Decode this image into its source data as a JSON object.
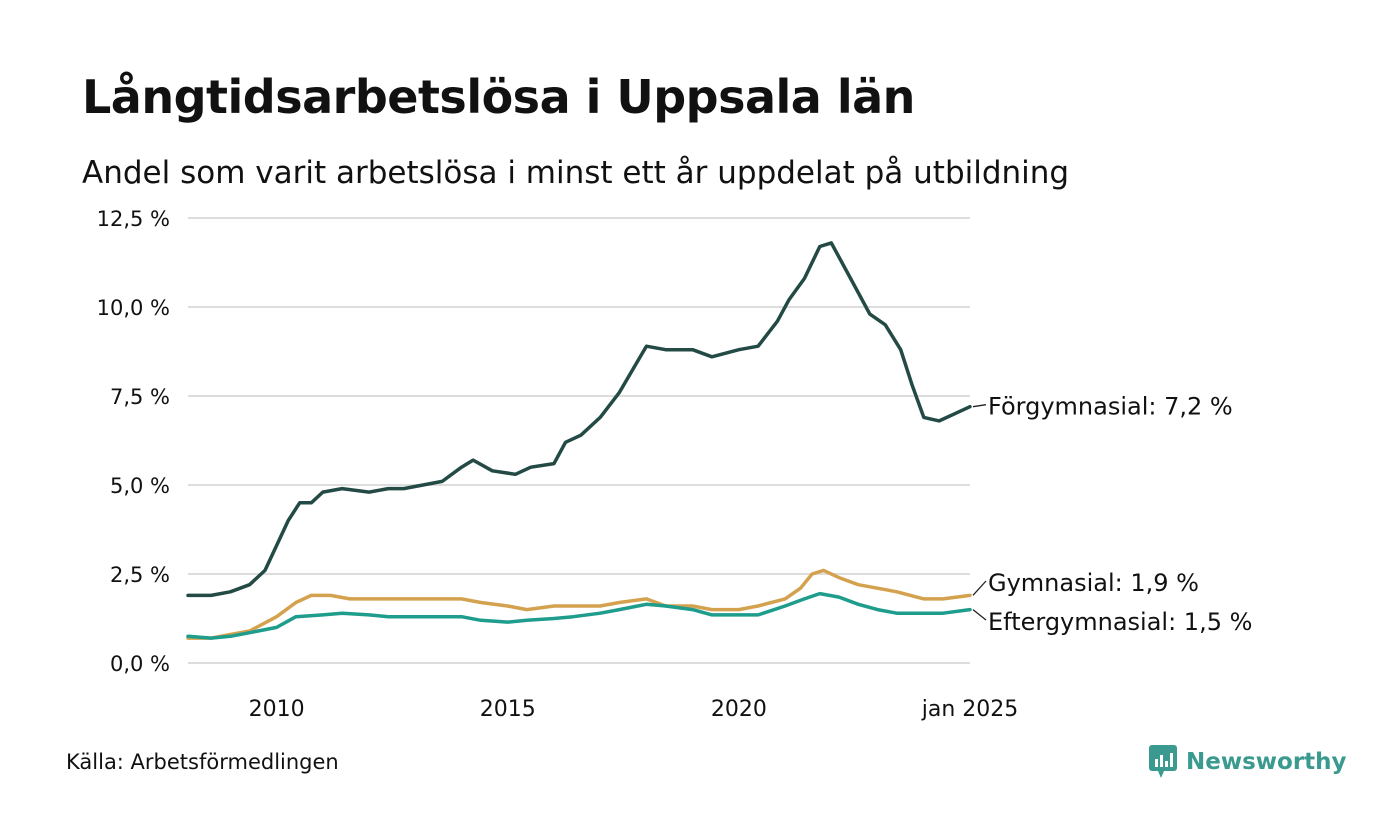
{
  "title": "Långtidsarbetslösa i Uppsala län",
  "subtitle": "Andel som varit arbetslösa i minst ett år uppdelat på utbildning",
  "source": "Källa: Arbetsförmedlingen",
  "brand": "Newsworthy",
  "colors": {
    "forgymnasial": "#234a44",
    "gymnasial": "#d4a24e",
    "eftergymnasial": "#1e9c8c",
    "grid": "#dddddd",
    "brand": "#3a9a8f"
  },
  "chart_data": {
    "type": "line",
    "title": "Långtidsarbetslösa i Uppsala län",
    "subtitle": "Andel som varit arbetslösa i minst ett år uppdelat på utbildning",
    "xlabel": "",
    "ylabel": "",
    "ylim": [
      0,
      12.5
    ],
    "xlim": [
      "2008-02",
      "2025-01"
    ],
    "y_ticks": [
      0,
      2.5,
      5,
      7.5,
      10,
      12.5
    ],
    "y_tick_labels": [
      "0,0 %",
      "2,5 %",
      "5,0 %",
      "7,5 %",
      "10,0 %",
      "12,5 %"
    ],
    "x_ticks": [
      "2010-01",
      "2015-01",
      "2020-01",
      "2025-01"
    ],
    "x_tick_labels": [
      "2010",
      "2015",
      "2020",
      "jan 2025"
    ],
    "grid": "horizontal",
    "legend": "direct labels at line ends",
    "series": [
      {
        "name": "Förgymnasial",
        "end_label": "Förgymnasial: 7,2 %",
        "color": "#234a44",
        "x": [
          "2008-02",
          "2008-08",
          "2009-01",
          "2009-06",
          "2009-10",
          "2010-01",
          "2010-04",
          "2010-07",
          "2010-10",
          "2011-01",
          "2011-06",
          "2012-01",
          "2012-06",
          "2012-10",
          "2013-03",
          "2013-08",
          "2014-01",
          "2014-04",
          "2014-09",
          "2015-03",
          "2015-07",
          "2016-01",
          "2016-04",
          "2016-08",
          "2017-01",
          "2017-06",
          "2018-01",
          "2018-06",
          "2019-01",
          "2019-06",
          "2020-01",
          "2020-06",
          "2020-11",
          "2021-02",
          "2021-06",
          "2021-10",
          "2022-01",
          "2022-06",
          "2022-11",
          "2023-03",
          "2023-07",
          "2023-10",
          "2024-01",
          "2024-05",
          "2024-09",
          "2025-01"
        ],
        "values": [
          1.9,
          1.9,
          2.0,
          2.2,
          2.6,
          3.3,
          4.0,
          4.5,
          4.5,
          4.8,
          4.9,
          4.8,
          4.9,
          4.9,
          5.0,
          5.1,
          5.5,
          5.7,
          5.4,
          5.3,
          5.5,
          5.6,
          6.2,
          6.4,
          6.9,
          7.6,
          8.9,
          8.8,
          8.8,
          8.6,
          8.8,
          8.9,
          9.6,
          10.2,
          10.8,
          11.7,
          11.8,
          10.8,
          9.8,
          9.5,
          8.8,
          7.8,
          6.9,
          6.8,
          7.0,
          7.2
        ]
      },
      {
        "name": "Gymnasial",
        "end_label": "Gymnasial: 1,9 %",
        "color": "#d4a24e",
        "x": [
          "2008-02",
          "2008-08",
          "2009-01",
          "2009-06",
          "2010-01",
          "2010-06",
          "2010-10",
          "2011-03",
          "2011-08",
          "2012-03",
          "2012-10",
          "2013-06",
          "2014-01",
          "2014-06",
          "2015-01",
          "2015-06",
          "2016-01",
          "2016-06",
          "2017-01",
          "2017-06",
          "2018-01",
          "2018-06",
          "2019-01",
          "2019-06",
          "2020-01",
          "2020-06",
          "2021-01",
          "2021-05",
          "2021-08",
          "2021-11",
          "2022-03",
          "2022-08",
          "2023-01",
          "2023-06",
          "2024-01",
          "2024-06",
          "2025-01"
        ],
        "values": [
          0.7,
          0.7,
          0.8,
          0.9,
          1.3,
          1.7,
          1.9,
          1.9,
          1.8,
          1.8,
          1.8,
          1.8,
          1.8,
          1.7,
          1.6,
          1.5,
          1.6,
          1.6,
          1.6,
          1.7,
          1.8,
          1.6,
          1.6,
          1.5,
          1.5,
          1.6,
          1.8,
          2.1,
          2.5,
          2.6,
          2.4,
          2.2,
          2.1,
          2.0,
          1.8,
          1.8,
          1.9
        ]
      },
      {
        "name": "Eftergymnasial",
        "end_label": "Eftergymnasial: 1,5 %",
        "color": "#1e9c8c",
        "x": [
          "2008-02",
          "2008-08",
          "2009-01",
          "2009-06",
          "2010-01",
          "2010-06",
          "2011-01",
          "2011-06",
          "2012-01",
          "2012-06",
          "2013-01",
          "2013-06",
          "2014-01",
          "2014-06",
          "2015-01",
          "2015-06",
          "2016-01",
          "2016-06",
          "2017-01",
          "2017-06",
          "2018-01",
          "2018-06",
          "2019-01",
          "2019-06",
          "2020-01",
          "2020-06",
          "2021-01",
          "2021-06",
          "2021-10",
          "2022-03",
          "2022-08",
          "2023-01",
          "2023-06",
          "2024-01",
          "2024-06",
          "2025-01"
        ],
        "values": [
          0.75,
          0.7,
          0.75,
          0.85,
          1.0,
          1.3,
          1.35,
          1.4,
          1.35,
          1.3,
          1.3,
          1.3,
          1.3,
          1.2,
          1.15,
          1.2,
          1.25,
          1.3,
          1.4,
          1.5,
          1.65,
          1.6,
          1.5,
          1.35,
          1.35,
          1.35,
          1.6,
          1.8,
          1.95,
          1.85,
          1.65,
          1.5,
          1.4,
          1.4,
          1.4,
          1.5
        ]
      }
    ]
  }
}
